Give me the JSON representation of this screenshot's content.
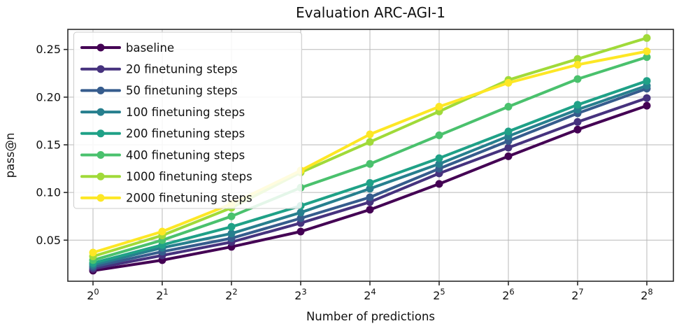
{
  "chart_data": {
    "type": "line",
    "title": "Evaluation ARC-AGI-1",
    "xlabel": "Number of predictions",
    "ylabel": "pass@n",
    "x_scale": "log2",
    "x_base": "2",
    "x_exponents": [
      "0",
      "1",
      "2",
      "3",
      "4",
      "5",
      "6",
      "7",
      "8"
    ],
    "x_values": [
      1,
      2,
      4,
      8,
      16,
      32,
      64,
      128,
      256
    ],
    "y_ticks": [
      {
        "value": 0.05,
        "label": "0.05"
      },
      {
        "value": 0.1,
        "label": "0.10"
      },
      {
        "value": 0.15,
        "label": "0.15"
      },
      {
        "value": 0.2,
        "label": "0.20"
      },
      {
        "value": 0.25,
        "label": "0.25"
      }
    ],
    "ylim": [
      0.007,
      0.271
    ],
    "grid": true,
    "legend_position": "upper-left",
    "series": [
      {
        "name": "baseline",
        "color": "#440154",
        "values": [
          0.018,
          0.029,
          0.043,
          0.059,
          0.082,
          0.109,
          0.138,
          0.166,
          0.191
        ]
      },
      {
        "name": "20 finetuning steps",
        "color": "#46327e",
        "values": [
          0.02,
          0.034,
          0.048,
          0.068,
          0.09,
          0.12,
          0.147,
          0.174,
          0.199
        ]
      },
      {
        "name": "50 finetuning steps",
        "color": "#365c8d",
        "values": [
          0.022,
          0.038,
          0.052,
          0.073,
          0.095,
          0.125,
          0.154,
          0.183,
          0.209
        ]
      },
      {
        "name": "100 finetuning steps",
        "color": "#277f8e",
        "values": [
          0.024,
          0.042,
          0.057,
          0.079,
          0.104,
          0.13,
          0.159,
          0.187,
          0.212
        ]
      },
      {
        "name": "200 finetuning steps",
        "color": "#1fa187",
        "values": [
          0.026,
          0.045,
          0.064,
          0.086,
          0.11,
          0.136,
          0.164,
          0.192,
          0.217
        ]
      },
      {
        "name": "400 finetuning steps",
        "color": "#4ac16d",
        "values": [
          0.029,
          0.05,
          0.075,
          0.105,
          0.13,
          0.16,
          0.19,
          0.219,
          0.242
        ]
      },
      {
        "name": "1000 finetuning steps",
        "color": "#a0da39",
        "values": [
          0.033,
          0.055,
          0.084,
          0.121,
          0.153,
          0.185,
          0.218,
          0.24,
          0.262
        ]
      },
      {
        "name": "2000 finetuning steps",
        "color": "#fde725",
        "values": [
          0.037,
          0.059,
          0.088,
          0.123,
          0.161,
          0.19,
          0.215,
          0.234,
          0.248
        ]
      }
    ]
  }
}
